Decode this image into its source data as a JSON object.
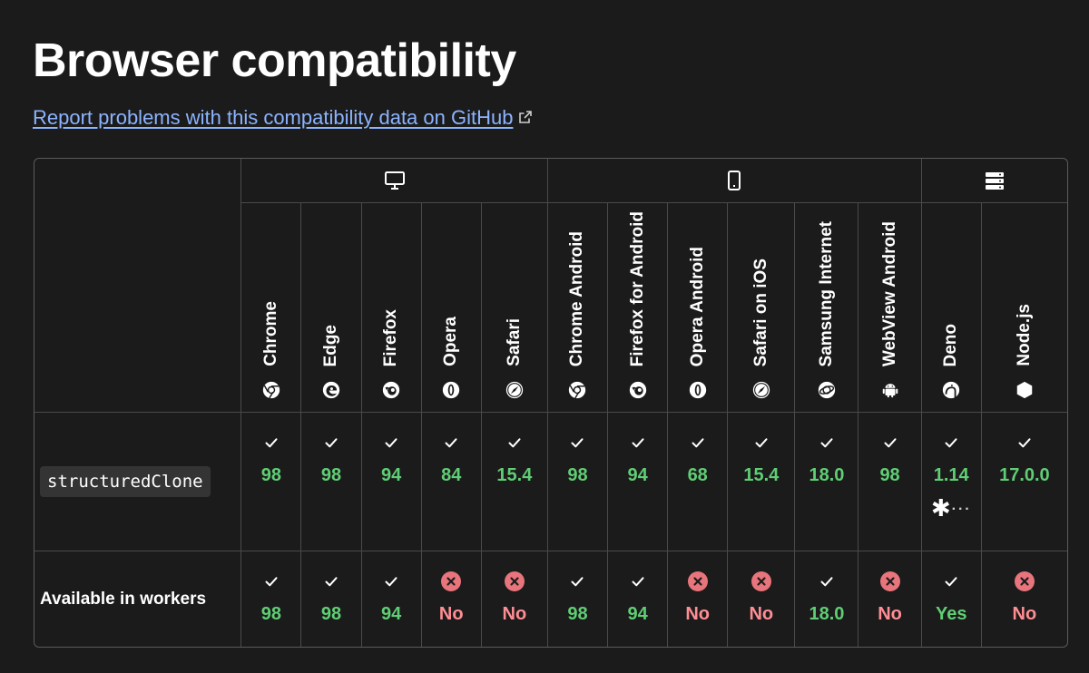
{
  "page": {
    "title": "Browser compatibility",
    "report_link": "Report problems with this compatibility data on GitHub"
  },
  "groups": [
    {
      "name": "desktop",
      "icon": "desktop-icon"
    },
    {
      "name": "mobile",
      "icon": "mobile-icon"
    },
    {
      "name": "server",
      "icon": "server-icon"
    }
  ],
  "browsers": [
    {
      "name": "Chrome",
      "icon": "chrome-icon"
    },
    {
      "name": "Edge",
      "icon": "edge-icon"
    },
    {
      "name": "Firefox",
      "icon": "firefox-icon"
    },
    {
      "name": "Opera",
      "icon": "opera-icon"
    },
    {
      "name": "Safari",
      "icon": "safari-icon"
    },
    {
      "name": "Chrome Android",
      "icon": "chrome-icon"
    },
    {
      "name": "Firefox for Android",
      "icon": "firefox-icon"
    },
    {
      "name": "Opera Android",
      "icon": "opera-icon"
    },
    {
      "name": "Safari on iOS",
      "icon": "safari-icon"
    },
    {
      "name": "Samsung Internet",
      "icon": "samsung-internet-icon"
    },
    {
      "name": "WebView Android",
      "icon": "android-icon"
    },
    {
      "name": "Deno",
      "icon": "deno-icon"
    },
    {
      "name": "Node.js",
      "icon": "nodejs-icon"
    }
  ],
  "rows": [
    {
      "feature": "structuredClone",
      "cells": [
        {
          "v": "98",
          "s": "yes"
        },
        {
          "v": "98",
          "s": "yes"
        },
        {
          "v": "94",
          "s": "yes"
        },
        {
          "v": "84",
          "s": "yes"
        },
        {
          "v": "15.4",
          "s": "yes"
        },
        {
          "v": "98",
          "s": "yes"
        },
        {
          "v": "94",
          "s": "yes"
        },
        {
          "v": "68",
          "s": "yes"
        },
        {
          "v": "15.4",
          "s": "yes"
        },
        {
          "v": "18.0",
          "s": "yes"
        },
        {
          "v": "98",
          "s": "yes"
        },
        {
          "v": "1.14",
          "s": "yes",
          "note": "✱",
          "more": "···"
        },
        {
          "v": "17.0.0",
          "s": "yes"
        }
      ]
    },
    {
      "feature": "Available in workers",
      "cells": [
        {
          "v": "98",
          "s": "yes"
        },
        {
          "v": "98",
          "s": "yes"
        },
        {
          "v": "94",
          "s": "yes"
        },
        {
          "v": "No",
          "s": "no"
        },
        {
          "v": "No",
          "s": "no"
        },
        {
          "v": "98",
          "s": "yes"
        },
        {
          "v": "94",
          "s": "yes"
        },
        {
          "v": "No",
          "s": "no"
        },
        {
          "v": "No",
          "s": "no"
        },
        {
          "v": "18.0",
          "s": "yes"
        },
        {
          "v": "No",
          "s": "no"
        },
        {
          "v": "Yes",
          "s": "yes"
        },
        {
          "v": "No",
          "s": "no"
        }
      ]
    }
  ],
  "colors": {
    "background": "#1b1b1b",
    "link": "#8cb4ff",
    "supported": "#5fce74",
    "unsupported": "#ff8e94",
    "unsupported_badge": "#e8747c"
  }
}
